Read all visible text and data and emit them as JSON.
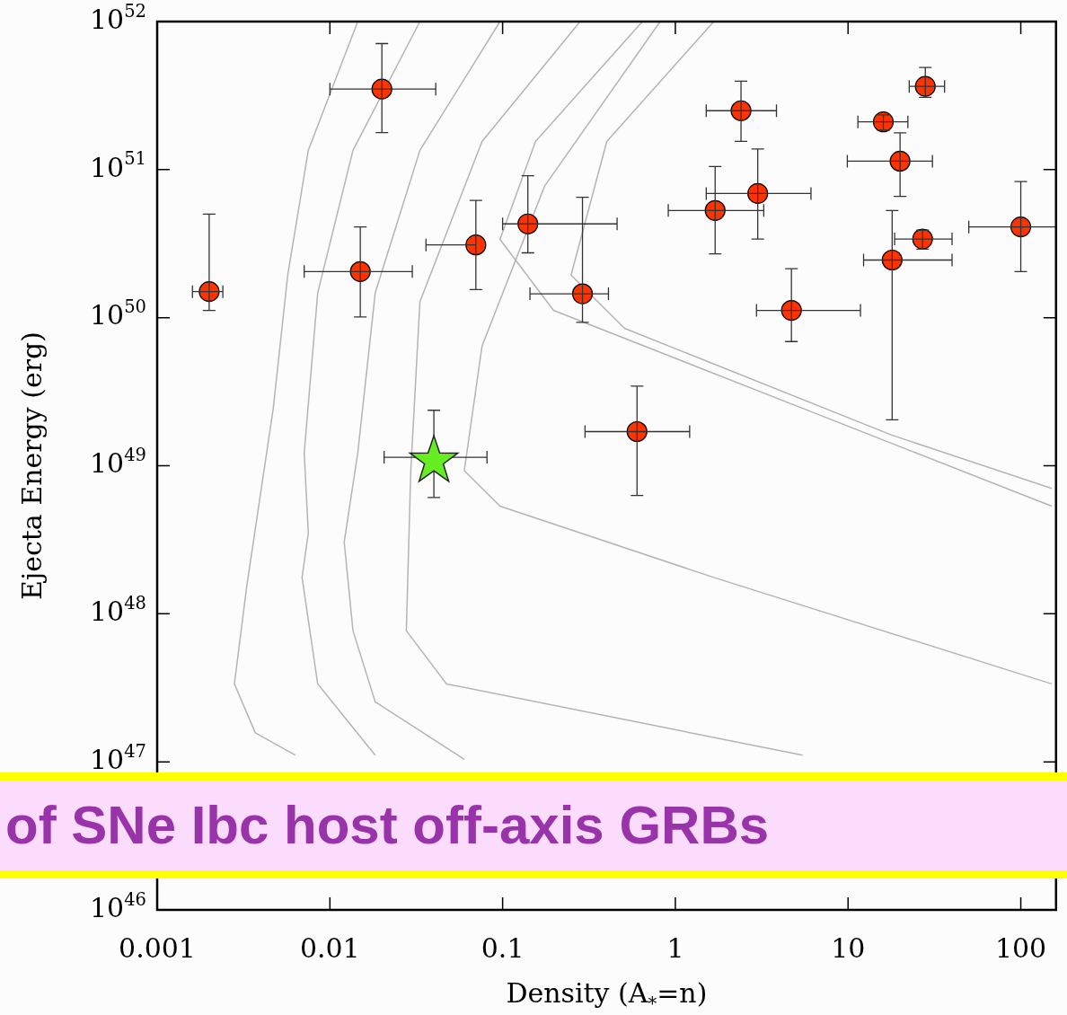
{
  "chart_data": {
    "type": "scatter",
    "xlabel": "Density (A$_{*}$=n)",
    "ylabel": "Ejecta Energy (erg)",
    "annotations": [
      "of SNe Ibc host off-axis GRBs"
    ],
    "log": "xy",
    "grid": false,
    "legend": false,
    "xlim": [
      0.001,
      160
    ],
    "ylim": [
      1e+46,
      1e+52
    ],
    "xticks": [
      0.001,
      0.01,
      0.1,
      1,
      10,
      100
    ],
    "yticks": [
      {
        "value": 1e+46,
        "label": "10$^{46}$"
      },
      {
        "value": 1e+47,
        "label": "10$^{47}$"
      },
      {
        "value": 1e+48,
        "label": "10$^{48}$"
      },
      {
        "value": 1e+49,
        "label": "10$^{49}$"
      },
      {
        "value": 1e+50,
        "label": "10$^{50}$"
      },
      {
        "value": 1e+51,
        "label": "10$^{51}$"
      },
      {
        "value": 1e+52,
        "label": "10$^{52}$"
      }
    ],
    "series": [
      {
        "type": "line",
        "color": "#b4b4b4",
        "marker": "none",
        "x": [
          0.0145,
          0.0075,
          0.0057,
          0.0047,
          0.0033,
          0.0028,
          0.0037,
          0.0063
        ],
        "values": [
          1e+52,
          1.35e+51,
          1.94e+50,
          2.44e+49,
          1.53e+48,
          3.36e+47,
          1.57e+47,
          1.11e+47
        ]
      },
      {
        "type": "line",
        "color": "#b4b4b4",
        "marker": "none",
        "x": [
          0.0332,
          0.0136,
          0.0085,
          0.0071,
          0.0075,
          0.0069,
          0.0085,
          0.0183
        ],
        "values": [
          1e+52,
          1.35e+51,
          1.47e+50,
          1.22e+49,
          3.52e+48,
          1.76e+48,
          3.36e+47,
          1.11e+47
        ]
      },
      {
        "type": "line",
        "color": "#b4b4b4",
        "marker": "none",
        "x": [
          0.0966,
          0.0332,
          0.0183,
          0.0145,
          0.0121,
          0.0136,
          0.0183,
          0.06
        ],
        "values": [
          1e+52,
          1.35e+51,
          1.47e+50,
          1.22e+49,
          3.06e+48,
          7.69e+47,
          2.54e+47,
          1.04e+47
        ]
      },
      {
        "type": "line",
        "color": "#b4b4b4",
        "marker": "none",
        "x": [
          0.281,
          0.076,
          0.0332,
          0.0294,
          0.0277,
          0.0473,
          0.508,
          5.46
        ],
        "values": [
          1e+52,
          1.55e+51,
          1.28e+50,
          9.27e+48,
          7.69e+47,
          3.36e+47,
          1.93e+47,
          1.11e+47
        ]
      },
      {
        "type": "line",
        "color": "#b4b4b4",
        "marker": "none",
        "x": [
          0.644,
          0.155,
          0.0966,
          0.197,
          5.46,
          151
        ],
        "values": [
          1e+52,
          1.55e+51,
          3.38e+50,
          1.12e+50,
          2.44e+49,
          5.33e+48
        ]
      },
      {
        "type": "line",
        "color": "#b4b4b4",
        "marker": "none",
        "x": [
          1.67,
          0.401,
          0.249,
          0.508,
          17.9,
          151
        ],
        "values": [
          1e+52,
          1.55e+51,
          1.94e+50,
          8.47e+49,
          1.61e+49,
          7.03e+48
        ]
      },
      {
        "type": "line",
        "color": "#b4b4b4",
        "marker": "none",
        "x": [
          0.817,
          0.175,
          0.076,
          0.06,
          0.0966,
          1.67,
          151
        ],
        "values": [
          1e+52,
          7.74e+50,
          6.43e+49,
          9.27e+48,
          5.33e+48,
          1.76e+48,
          3.36e+47
        ]
      },
      {
        "type": "scatter",
        "color": "#ff3300",
        "marker": "circle",
        "x": [
          0.002,
          0.02,
          0.015,
          0.07,
          0.14,
          0.29,
          0.6,
          1.7,
          3,
          2.4,
          4.7,
          16,
          28,
          20,
          27,
          18,
          100
        ],
        "values": [
          1.5e+50,
          3.5e+51,
          2.05e+50,
          3.1e+50,
          4.3e+50,
          1.45e+50,
          1.7e+49,
          5.3e+50,
          6.9e+50,
          2.5e+51,
          1.12e+50,
          2.1e+51,
          3.65e+51,
          1.14e+51,
          3.4e+50,
          2.45e+50,
          4.1e+50
        ],
        "xerrors": [
          [
            0.0016,
            0.0024
          ],
          [
            0.01,
            0.041
          ],
          [
            0.0071,
            0.03
          ],
          [
            0.036,
            0.07
          ],
          [
            0.1,
            0.46
          ],
          [
            0.144,
            0.41
          ],
          [
            0.3,
            1.21
          ],
          [
            0.91,
            3.25
          ],
          [
            1.51,
            6.1
          ],
          [
            1.51,
            3.85
          ],
          [
            2.95,
            11.8
          ],
          [
            11.4,
            22.2
          ],
          [
            22.6,
            36.2
          ],
          [
            9.9,
            30.8
          ],
          [
            18.6,
            40
          ],
          [
            12.3,
            40
          ],
          [
            50,
            160
          ]
        ],
        "errors": [
          [
            1.12e+50,
            5e+50
          ],
          [
            1.78e+51,
            7.1e+51
          ],
          [
            1.01e+50,
            4.1e+50
          ],
          [
            1.55e+50,
            6.2e+50
          ],
          [
            2.74e+50,
            9.1e+50
          ],
          [
            9.3e+49,
            6.5e+50
          ],
          [
            6.3e+48,
            3.45e+49
          ],
          [
            2.7e+50,
            1.05e+51
          ],
          [
            3.4e+50,
            1.38e+51
          ],
          [
            1.55e+51,
            3.96e+51
          ],
          [
            6.9e+49,
            2.14e+50
          ],
          [
            1.85e+51,
            2.34e+51
          ],
          [
            3.08e+51,
            4.9e+51
          ],
          [
            6.6e+50,
            1.77e+51
          ],
          [
            2.9e+50,
            3.9e+50
          ],
          [
            2.04e+49,
            5.3e+50
          ],
          [
            2.05e+50,
            8.3e+50
          ]
        ]
      },
      {
        "type": "scatter",
        "color": "#66ee22",
        "marker": "star",
        "x": [
          0.04
        ],
        "values": [
          1.14e+49
        ],
        "xerrors": [
          [
            0.0206,
            0.0812
          ]
        ],
        "errors": [
          [
            6.1e+48,
            2.37e+49
          ]
        ]
      }
    ]
  }
}
